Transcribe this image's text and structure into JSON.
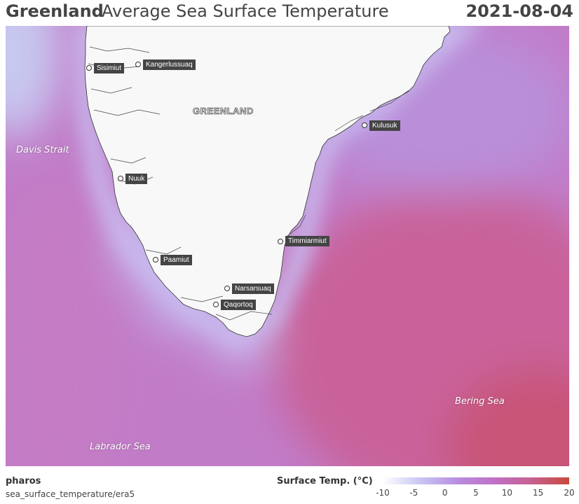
{
  "header": {
    "title_strong": "Greenland",
    "title_rest": "Average Sea Surface Temperature",
    "date": "2021-08-04"
  },
  "map": {
    "land_label": "GREENLAND",
    "seas": {
      "davis": "Davis Strait",
      "bering": "Bering Sea",
      "labrador": "Labrador Sea"
    },
    "cities": [
      {
        "name": "Sisimiut"
      },
      {
        "name": "Kangerlussuaq"
      },
      {
        "name": "Nuuk"
      },
      {
        "name": "Paamiut"
      },
      {
        "name": "Narsarsuaq"
      },
      {
        "name": "Qaqortoq"
      },
      {
        "name": "Timmiarmiut"
      },
      {
        "name": "Kulusuk"
      }
    ],
    "colors": {
      "cold": "#c9c8f2",
      "mid": "#c07ccd",
      "warm": "#c95a7a",
      "land": "#f8f8f8"
    }
  },
  "footer": {
    "brand": "pharos",
    "source": "sea_surface_temperature/era5"
  },
  "legend": {
    "title": "Surface Temp. (°C)",
    "ticks": [
      "-10",
      "-5",
      "0",
      "5",
      "10",
      "15",
      "20"
    ],
    "range": [
      -10,
      20
    ],
    "colors": [
      "#ffffff",
      "#c8c6f3",
      "#b98de0",
      "#c070c6",
      "#c7608f",
      "#c94a3b"
    ]
  }
}
